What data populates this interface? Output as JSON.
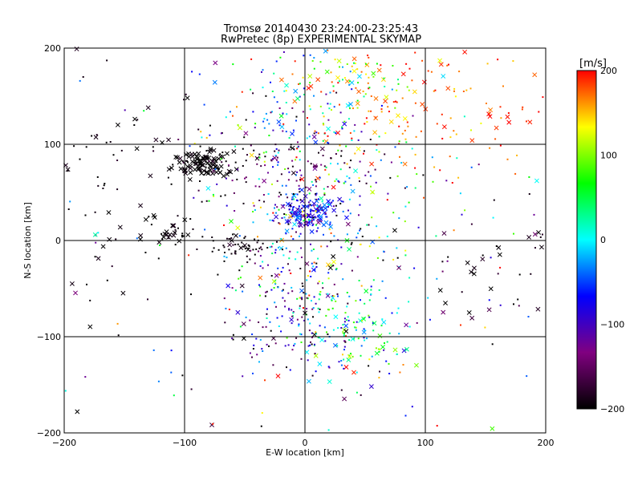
{
  "chart_data": {
    "type": "scatter",
    "title": "Tromsø 20140430 23:24:00-23:25:43",
    "subtitle": "RwPretec (8p) EXPERIMENTAL SKYMAP",
    "xlabel": "E-W location [km]",
    "ylabel": "N-S location [km]",
    "xlim": [
      -200,
      200
    ],
    "ylim": [
      -200,
      200
    ],
    "xticks": [
      -200,
      -100,
      0,
      100,
      200
    ],
    "yticks": [
      -200,
      -100,
      0,
      100,
      200
    ],
    "grid": true,
    "marker_types": [
      "dot",
      "x"
    ],
    "colorbar": {
      "label": "[m/s]",
      "min": -200,
      "max": 200,
      "ticks": [
        -200,
        -100,
        0,
        100,
        200
      ],
      "stops": [
        "#000000",
        "#800080",
        "#0000ff",
        "#00ffff",
        "#00ff00",
        "#ffff00",
        "#ff0000"
      ]
    },
    "clusters": [
      {
        "x": -85,
        "y": 80,
        "sx": 12,
        "sy": 8,
        "n": 110,
        "v": -200,
        "vs": 6,
        "xfrac": 0.6
      },
      {
        "x": 0,
        "y": 28,
        "sx": 12,
        "sy": 9,
        "n": 170,
        "v": -70,
        "vs": 30,
        "xfrac": 0.3
      },
      {
        "x": -20,
        "y": 120,
        "sx": 40,
        "sy": 30,
        "n": 130,
        "v": -40,
        "vs": 90,
        "xfrac": 0.1
      },
      {
        "x": -10,
        "y": 70,
        "sx": 35,
        "sy": 25,
        "n": 120,
        "v": -170,
        "vs": 30,
        "xfrac": 0.1
      },
      {
        "x": 90,
        "y": 140,
        "sx": 60,
        "sy": 40,
        "n": 170,
        "v": 175,
        "vs": 25,
        "xfrac": 0.25
      },
      {
        "x": 40,
        "y": 165,
        "sx": 30,
        "sy": 20,
        "n": 70,
        "v": 70,
        "vs": 70,
        "xfrac": 0.3
      },
      {
        "x": 40,
        "y": 30,
        "sx": 45,
        "sy": 50,
        "n": 130,
        "v": 30,
        "vs": 110,
        "xfrac": 0.1
      },
      {
        "x": 40,
        "y": -100,
        "sx": 25,
        "sy": 25,
        "n": 120,
        "v": 20,
        "vs": 60,
        "xfrac": 0.2
      },
      {
        "x": -10,
        "y": -90,
        "sx": 30,
        "sy": 35,
        "n": 110,
        "v": -110,
        "vs": 50,
        "xfrac": 0.15
      },
      {
        "x": 0,
        "y": -20,
        "sx": 45,
        "sy": 45,
        "n": 170,
        "v": -20,
        "vs": 120,
        "xfrac": 0.05
      },
      {
        "x": -110,
        "y": 7,
        "sx": 10,
        "sy": 5,
        "n": 30,
        "v": -200,
        "vs": 5,
        "xfrac": 0.6
      },
      {
        "x": -55,
        "y": -5,
        "sx": 12,
        "sy": 7,
        "n": 50,
        "v": -195,
        "vs": 8,
        "xfrac": 0.1
      },
      {
        "x": -150,
        "y": 60,
        "sx": 35,
        "sy": 70,
        "n": 90,
        "v": -195,
        "vs": 10,
        "xfrac": 0.4
      },
      {
        "x": 150,
        "y": -20,
        "sx": 40,
        "sy": 40,
        "n": 45,
        "v": -190,
        "vs": 20,
        "xfrac": 0.4
      },
      {
        "x": 0,
        "y": 0,
        "sx": 130,
        "sy": 130,
        "n": 140,
        "v": 0,
        "vs": 140,
        "xfrac": 0.15
      }
    ]
  }
}
